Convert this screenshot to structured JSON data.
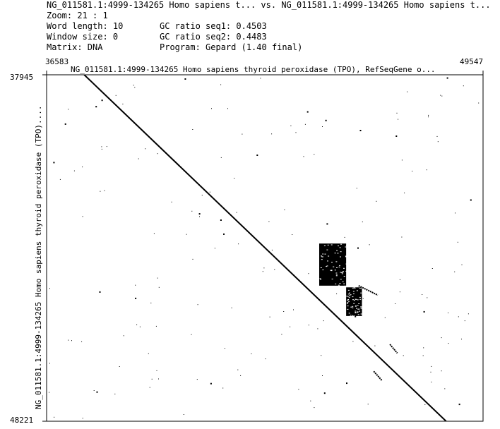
{
  "header": {
    "title": "NG_011581.1:4999-134265 Homo sapiens t... vs. NG_011581.1:4999-134265 Homo sapiens t...",
    "zoom_label": "Zoom: 21 : 1",
    "word_length_label": "Word length: 10",
    "window_size_label": "Window size: 0",
    "matrix_label": "Matrix: DNA",
    "gc_seq1_label": "GC ratio seq1: 0.4503",
    "gc_seq2_label": "GC ratio seq2: 0.4483",
    "program_label": "Program: Gepard (1.40 final)"
  },
  "chart_data": {
    "type": "scatter",
    "subtype": "dotplot",
    "title": "NG_011581.1:4999-134265 Homo sapiens thyroid peroxidase (TPO), RefSeqGene o...",
    "ylabel": "NG_011581.1:4999-134265 Homo sapiens thyroid peroxidase (TPO)....",
    "xlim": [
      36583,
      49547
    ],
    "ylim": [
      37945,
      48221
    ],
    "x_tick_labels": [
      "36583",
      "49547"
    ],
    "y_tick_labels": [
      "37945",
      "48221"
    ],
    "y_inverted": true,
    "grid": false,
    "main_diagonal": {
      "x": [
        37700,
        48450
      ],
      "y": [
        37945,
        48221
      ]
    },
    "dense_blocks": [
      {
        "x": [
          44680,
          45480
        ],
        "y": [
          42950,
          44200
        ]
      },
      {
        "x": [
          45480,
          45950
        ],
        "y": [
          44250,
          45100
        ]
      }
    ],
    "secondary_segments": [
      {
        "x": [
          45850,
          46420
        ],
        "y": [
          44200,
          44480
        ]
      },
      {
        "x": [
          46780,
          47000
        ],
        "y": [
          45940,
          46200
        ]
      },
      {
        "x": [
          46300,
          46550
        ],
        "y": [
          46740,
          47020
        ]
      }
    ],
    "noise_dot_count": 180
  }
}
